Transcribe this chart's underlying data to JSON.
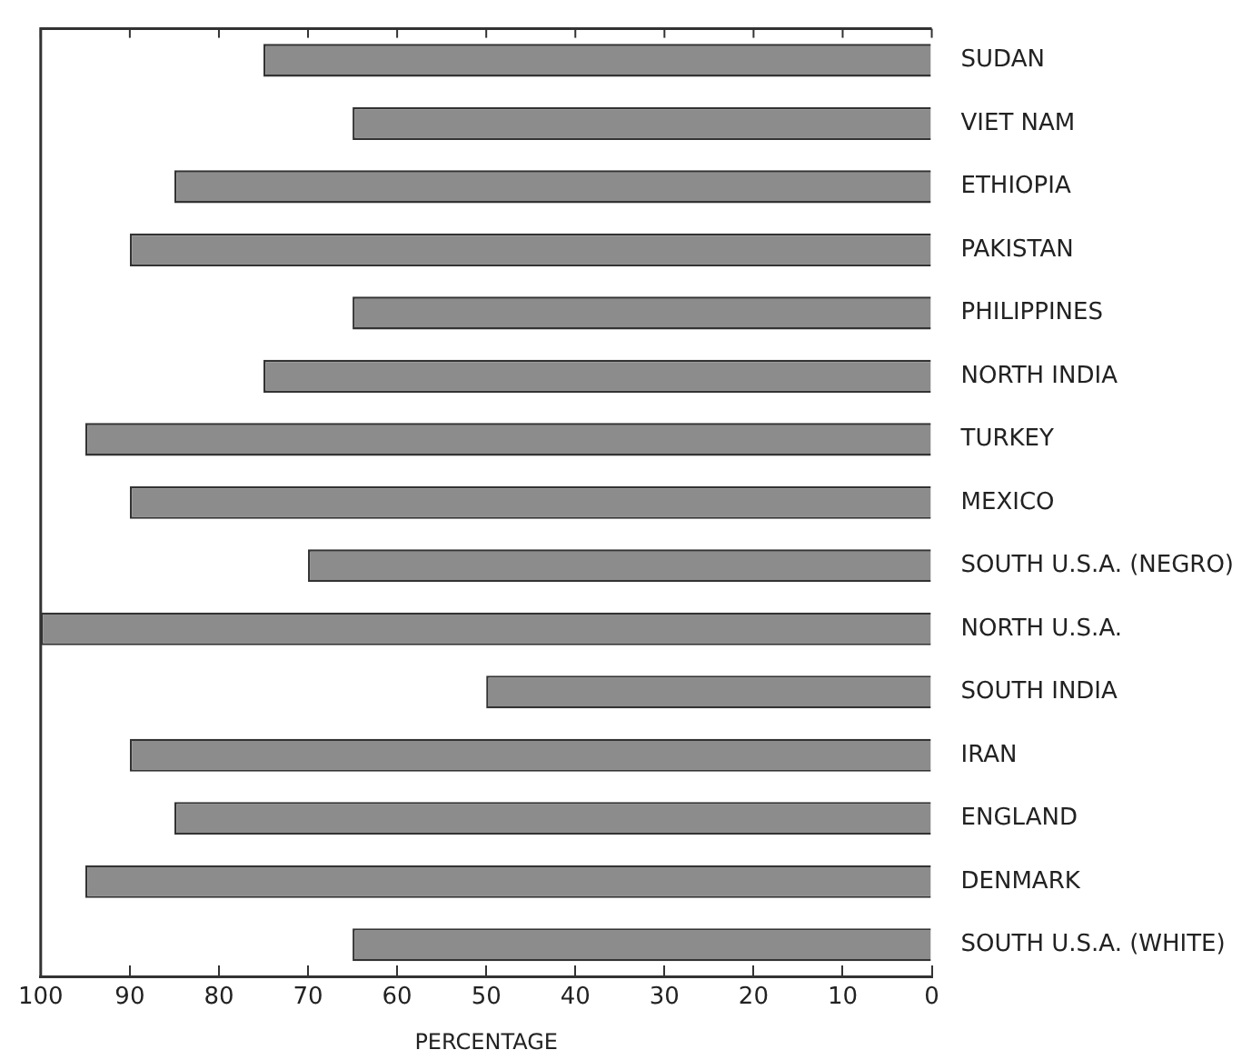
{
  "chart_data": {
    "type": "bar",
    "orientation": "horizontal",
    "xlabel": "PERCENTAGE",
    "categories": [
      "SUDAN",
      "VIET NAM",
      "ETHIOPIA",
      "PAKISTAN",
      "PHILIPPINES",
      "NORTH INDIA",
      "TURKEY",
      "MEXICO",
      "SOUTH U.S.A. (NEGRO)",
      "NORTH U.S.A.",
      "SOUTH INDIA",
      "IRAN",
      "ENGLAND",
      "DENMARK",
      "SOUTH U.S.A. (WHITE)"
    ],
    "values": [
      75,
      65,
      85,
      90,
      65,
      75,
      95,
      90,
      70,
      100,
      50,
      90,
      85,
      95,
      65
    ],
    "color": "#8c8c8c",
    "xlim": [
      100,
      0
    ],
    "xticks": [
      100,
      90,
      80,
      70,
      60,
      50,
      40,
      30,
      20,
      10,
      0
    ],
    "grid": false,
    "legend": false
  }
}
